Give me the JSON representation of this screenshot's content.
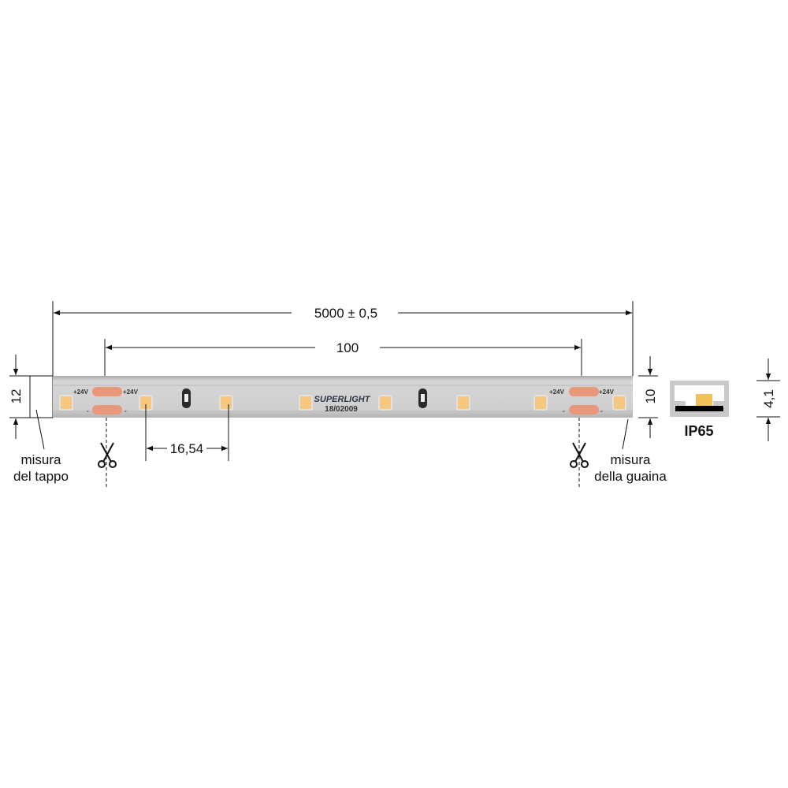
{
  "dimensions": {
    "total_length": "5000 ± 0,5",
    "cut_segment": "100",
    "led_pitch": "16,54",
    "cap_height": "12",
    "sheath_height": "10",
    "profile_height": "4,1"
  },
  "labels": {
    "cap_line1": "misura",
    "cap_line2": "del tappo",
    "sheath_line1": "misura",
    "sheath_line2": "della guaina",
    "protection": "IP65"
  },
  "strip": {
    "pad_plus": "+24V",
    "pad_minus": "-",
    "brand": "SUPERLIGHT",
    "code": "18/02009",
    "led_color": "#f6c77e",
    "pad_color": "#e8977a",
    "strip_color": "#c9c9c9"
  },
  "icons": {
    "cut": "scissors-icon"
  }
}
